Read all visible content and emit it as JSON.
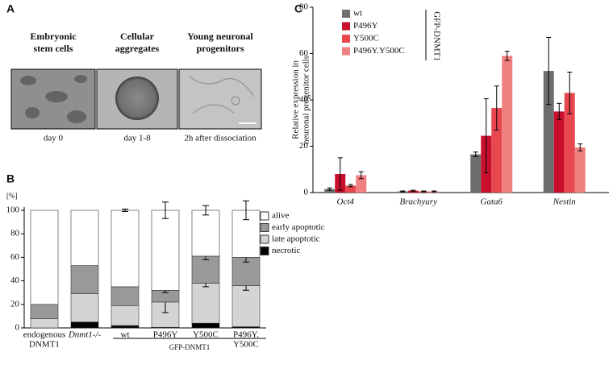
{
  "panel_a": {
    "label": "A",
    "columns": [
      {
        "title": [
          "Embryonic",
          "stem cells"
        ],
        "caption": "day 0"
      },
      {
        "title": [
          "Cellular",
          "aggregates"
        ],
        "caption": "day 1-8"
      },
      {
        "title": [
          "Young neuronal",
          "progenitors"
        ],
        "caption": "2h after dissociation"
      }
    ]
  },
  "chart_data": [
    {
      "type": "stacked_bar",
      "label": "B",
      "y_unit": "[%]",
      "group_label": "GFP-DNMT1",
      "categories": [
        [
          "endogenous",
          "DNMT1"
        ],
        [
          "Dnmt1-/-"
        ],
        [
          "wt"
        ],
        [
          "P496Y"
        ],
        [
          "Y500C"
        ],
        [
          "P496Y.",
          "Y500C"
        ]
      ],
      "series": [
        {
          "name": "necrotic",
          "color": "#000000",
          "values": [
            0,
            5,
            2,
            0.5,
            4,
            1
          ],
          "errors": [
            null,
            null,
            null,
            null,
            2,
            null
          ]
        },
        {
          "name": "late apoptotic",
          "color": "#d4d4d4",
          "values": [
            8,
            24,
            17,
            21.5,
            34,
            35
          ],
          "errors": [
            null,
            null,
            null,
            9,
            3,
            4
          ]
        },
        {
          "name": "early apoptotic",
          "color": "#999999",
          "values": [
            12,
            24,
            16,
            10,
            23,
            24
          ],
          "errors": [
            null,
            null,
            null,
            2,
            3,
            4
          ]
        },
        {
          "name": "alive",
          "color": "#ffffff",
          "values": [
            80,
            47,
            65,
            68,
            39,
            40
          ],
          "errors": [
            null,
            null,
            1,
            7,
            4,
            8
          ]
        }
      ],
      "ylim": [
        0,
        100
      ],
      "yticks": [
        0,
        20,
        40,
        60,
        80,
        100
      ]
    },
    {
      "type": "bar",
      "label": "C",
      "legend_title": "GFP-DNMT1",
      "y_label": [
        "Relative expression in",
        "neuronal progenitor cells"
      ],
      "categories": [
        "Oct4",
        "Brachyury",
        "Gata6",
        "Nestin"
      ],
      "series": [
        {
          "name": "wt",
          "color": "#6d6e70",
          "values": [
            1.5,
            0.5,
            16.5,
            52.5
          ],
          "errors": [
            0.5,
            0.2,
            1,
            14.5
          ]
        },
        {
          "name": "P496Y",
          "color": "#c8102e",
          "values": [
            8,
            0.8,
            24.5,
            35
          ],
          "errors": [
            7,
            0.2,
            16,
            3.5
          ]
        },
        {
          "name": "Y500C",
          "color": "#e8474f",
          "values": [
            3,
            0.5,
            36.5,
            43
          ],
          "errors": [
            0.5,
            0.2,
            9.5,
            9
          ]
        },
        {
          "name": "P496Y.Y500C",
          "color": "#f08080",
          "values": [
            7.5,
            0.5,
            59,
            19.5
          ],
          "errors": [
            1.5,
            0.2,
            2,
            1.5
          ]
        }
      ],
      "ylim": [
        0,
        80
      ],
      "yticks": [
        0,
        20,
        40,
        60,
        80
      ]
    }
  ]
}
